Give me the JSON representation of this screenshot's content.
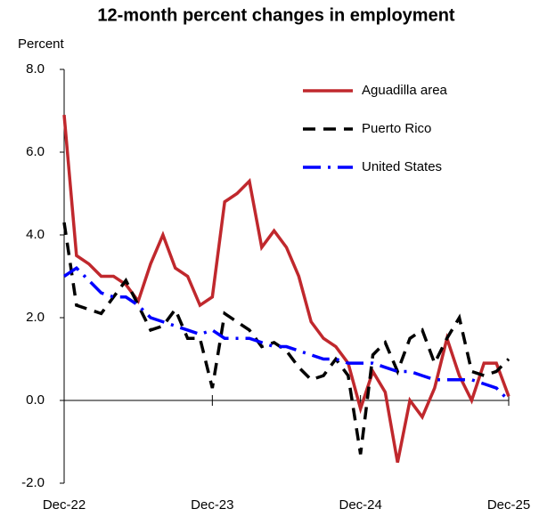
{
  "chart_data": {
    "type": "line",
    "title": "12-month percent changes in employment",
    "ylabel": "Percent",
    "categories": [
      "Dec-22",
      null,
      null,
      null,
      null,
      null,
      null,
      null,
      null,
      null,
      null,
      null,
      "Dec-23",
      null,
      null,
      null,
      null,
      null,
      null,
      null,
      null,
      null,
      null,
      null,
      "Dec-24",
      null,
      null,
      null,
      null,
      null,
      null,
      null,
      null,
      null,
      null,
      null,
      "Dec-25"
    ],
    "series": [
      {
        "name": "Aguadilla area",
        "color": "#c0282d",
        "dash": "solid",
        "values": [
          6.9,
          3.5,
          3.3,
          3.0,
          3.0,
          2.8,
          2.4,
          3.3,
          4.0,
          3.2,
          3.0,
          2.3,
          2.5,
          4.8,
          5.0,
          5.3,
          3.7,
          4.1,
          3.7,
          3.0,
          1.9,
          1.5,
          1.3,
          0.9,
          -0.2,
          0.7,
          0.2,
          -1.5,
          0.0,
          -0.4,
          0.3,
          1.5,
          0.6,
          0.0,
          0.9,
          0.9,
          0.1
        ]
      },
      {
        "name": "Puerto Rico",
        "color": "#000000",
        "dash": "dashed",
        "values": [
          4.3,
          2.3,
          2.2,
          2.1,
          2.5,
          2.9,
          2.3,
          1.7,
          1.8,
          2.2,
          1.5,
          1.5,
          0.3,
          2.1,
          1.9,
          1.7,
          1.3,
          1.4,
          1.2,
          0.8,
          0.5,
          0.6,
          1.0,
          0.6,
          -1.3,
          1.1,
          1.4,
          0.7,
          1.5,
          1.7,
          0.9,
          1.5,
          2.0,
          0.7,
          0.6,
          0.7,
          1.0
        ]
      },
      {
        "name": "United States",
        "color": "#0000ff",
        "dash": "dashdot",
        "values": [
          3.0,
          3.2,
          2.9,
          2.6,
          2.5,
          2.5,
          2.3,
          2.0,
          1.9,
          1.8,
          1.7,
          1.6,
          1.7,
          1.5,
          1.5,
          1.5,
          1.4,
          1.3,
          1.3,
          1.2,
          1.1,
          1.0,
          1.0,
          0.9,
          0.9,
          0.9,
          0.8,
          0.7,
          0.7,
          0.6,
          0.5,
          0.5,
          0.5,
          0.5,
          0.4,
          0.3,
          0.0
        ]
      }
    ],
    "ylim": [
      -2,
      8
    ],
    "yticks": [
      {
        "value": -2,
        "label": "-2.0"
      },
      {
        "value": 0,
        "label": "0.0"
      },
      {
        "value": 2,
        "label": "2.0"
      },
      {
        "value": 4,
        "label": "4.0"
      },
      {
        "value": 6,
        "label": "6.0"
      },
      {
        "value": 8,
        "label": "8.0"
      }
    ],
    "legend": "top-right"
  }
}
